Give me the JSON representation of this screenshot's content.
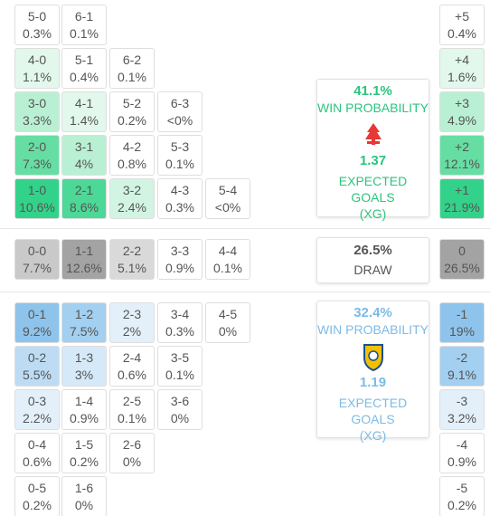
{
  "sections": [
    {
      "rows": [
        {
          "cells": [
            {
              "score": "5-0",
              "pct": "0.3%",
              "color": "#ffffff"
            },
            {
              "score": "6-1",
              "pct": "0.1%",
              "color": "#ffffff"
            }
          ],
          "margin": {
            "label": "+5",
            "pct": "0.4%",
            "color": "#ffffff"
          }
        },
        {
          "cells": [
            {
              "score": "4-0",
              "pct": "1.1%",
              "color": "#e2f8ec"
            },
            {
              "score": "5-1",
              "pct": "0.4%",
              "color": "#ffffff"
            },
            {
              "score": "6-2",
              "pct": "0.1%",
              "color": "#ffffff"
            }
          ],
          "margin": {
            "label": "+4",
            "pct": "1.6%",
            "color": "#e2f8ec"
          }
        },
        {
          "cells": [
            {
              "score": "3-0",
              "pct": "3.3%",
              "color": "#b9f0d3"
            },
            {
              "score": "4-1",
              "pct": "1.4%",
              "color": "#e2f8ec"
            },
            {
              "score": "5-2",
              "pct": "0.2%",
              "color": "#ffffff"
            },
            {
              "score": "6-3",
              "pct": "<0%",
              "color": "#ffffff"
            }
          ],
          "margin": {
            "label": "+3",
            "pct": "4.9%",
            "color": "#b9f0d3"
          }
        },
        {
          "cells": [
            {
              "score": "2-0",
              "pct": "7.3%",
              "color": "#66dea3"
            },
            {
              "score": "3-1",
              "pct": "4%",
              "color": "#b9f0d3"
            },
            {
              "score": "4-2",
              "pct": "0.8%",
              "color": "#ffffff"
            },
            {
              "score": "5-3",
              "pct": "0.1%",
              "color": "#ffffff"
            }
          ],
          "margin": {
            "label": "+2",
            "pct": "12.1%",
            "color": "#66dea3"
          }
        },
        {
          "cells": [
            {
              "score": "1-0",
              "pct": "10.6%",
              "color": "#33d28a"
            },
            {
              "score": "2-1",
              "pct": "8.6%",
              "color": "#4cd896"
            },
            {
              "score": "3-2",
              "pct": "2.4%",
              "color": "#d1f5e2"
            },
            {
              "score": "4-3",
              "pct": "0.3%",
              "color": "#ffffff"
            },
            {
              "score": "5-4",
              "pct": "<0%",
              "color": "#ffffff"
            }
          ],
          "margin": {
            "label": "+1",
            "pct": "21.9%",
            "color": "#33d28a"
          }
        }
      ],
      "summary": {
        "probability": "41.1%",
        "label": "WIN PROBABILITY",
        "xg": "1.37",
        "xg_label": "EXPECTED GOALS",
        "xg_abbr": "(XG)",
        "color": "#2cc47e"
      }
    },
    {
      "rows": [
        {
          "cells": [
            {
              "score": "0-0",
              "pct": "7.7%",
              "color": "#c9c9c9"
            },
            {
              "score": "1-1",
              "pct": "12.6%",
              "color": "#a3a3a3"
            },
            {
              "score": "2-2",
              "pct": "5.1%",
              "color": "#d9d9d9"
            },
            {
              "score": "3-3",
              "pct": "0.9%",
              "color": "#ffffff"
            },
            {
              "score": "4-4",
              "pct": "0.1%",
              "color": "#ffffff"
            }
          ],
          "margin": {
            "label": "0",
            "pct": "26.5%",
            "color": "#a3a3a3"
          }
        }
      ],
      "summary": {
        "probability": "26.5%",
        "label": "DRAW",
        "color": "#555555"
      }
    },
    {
      "rows": [
        {
          "cells": [
            {
              "score": "0-1",
              "pct": "9.2%",
              "color": "#8ec4ec"
            },
            {
              "score": "1-2",
              "pct": "7.5%",
              "color": "#a3cff0"
            },
            {
              "score": "2-3",
              "pct": "2%",
              "color": "#e3f0fa"
            },
            {
              "score": "3-4",
              "pct": "0.3%",
              "color": "#ffffff"
            },
            {
              "score": "4-5",
              "pct": "0%",
              "color": "#ffffff"
            }
          ],
          "margin": {
            "label": "-1",
            "pct": "19%",
            "color": "#8ec4ec"
          }
        },
        {
          "cells": [
            {
              "score": "0-2",
              "pct": "5.5%",
              "color": "#bddcf4"
            },
            {
              "score": "1-3",
              "pct": "3%",
              "color": "#d6e9f8"
            },
            {
              "score": "2-4",
              "pct": "0.6%",
              "color": "#ffffff"
            },
            {
              "score": "3-5",
              "pct": "0.1%",
              "color": "#ffffff"
            }
          ],
          "margin": {
            "label": "-2",
            "pct": "9.1%",
            "color": "#a3cff0"
          }
        },
        {
          "cells": [
            {
              "score": "0-3",
              "pct": "2.2%",
              "color": "#e3f0fa"
            },
            {
              "score": "1-4",
              "pct": "0.9%",
              "color": "#ffffff"
            },
            {
              "score": "2-5",
              "pct": "0.1%",
              "color": "#ffffff"
            },
            {
              "score": "3-6",
              "pct": "0%",
              "color": "#ffffff"
            }
          ],
          "margin": {
            "label": "-3",
            "pct": "3.2%",
            "color": "#e3f0fa"
          }
        },
        {
          "cells": [
            {
              "score": "0-4",
              "pct": "0.6%",
              "color": "#ffffff"
            },
            {
              "score": "1-5",
              "pct": "0.2%",
              "color": "#ffffff"
            },
            {
              "score": "2-6",
              "pct": "0%",
              "color": "#ffffff"
            }
          ],
          "margin": {
            "label": "-4",
            "pct": "0.9%",
            "color": "#ffffff"
          }
        },
        {
          "cells": [
            {
              "score": "0-5",
              "pct": "0.2%",
              "color": "#ffffff"
            },
            {
              "score": "1-6",
              "pct": "0%",
              "color": "#ffffff"
            }
          ],
          "margin": {
            "label": "-5",
            "pct": "0.2%",
            "color": "#ffffff"
          }
        }
      ],
      "summary": {
        "probability": "32.4%",
        "label": "WIN PROBABILITY",
        "xg": "1.19",
        "xg_label": "EXPECTED GOALS",
        "xg_abbr": "(XG)",
        "color": "#7dbbe4"
      }
    }
  ]
}
